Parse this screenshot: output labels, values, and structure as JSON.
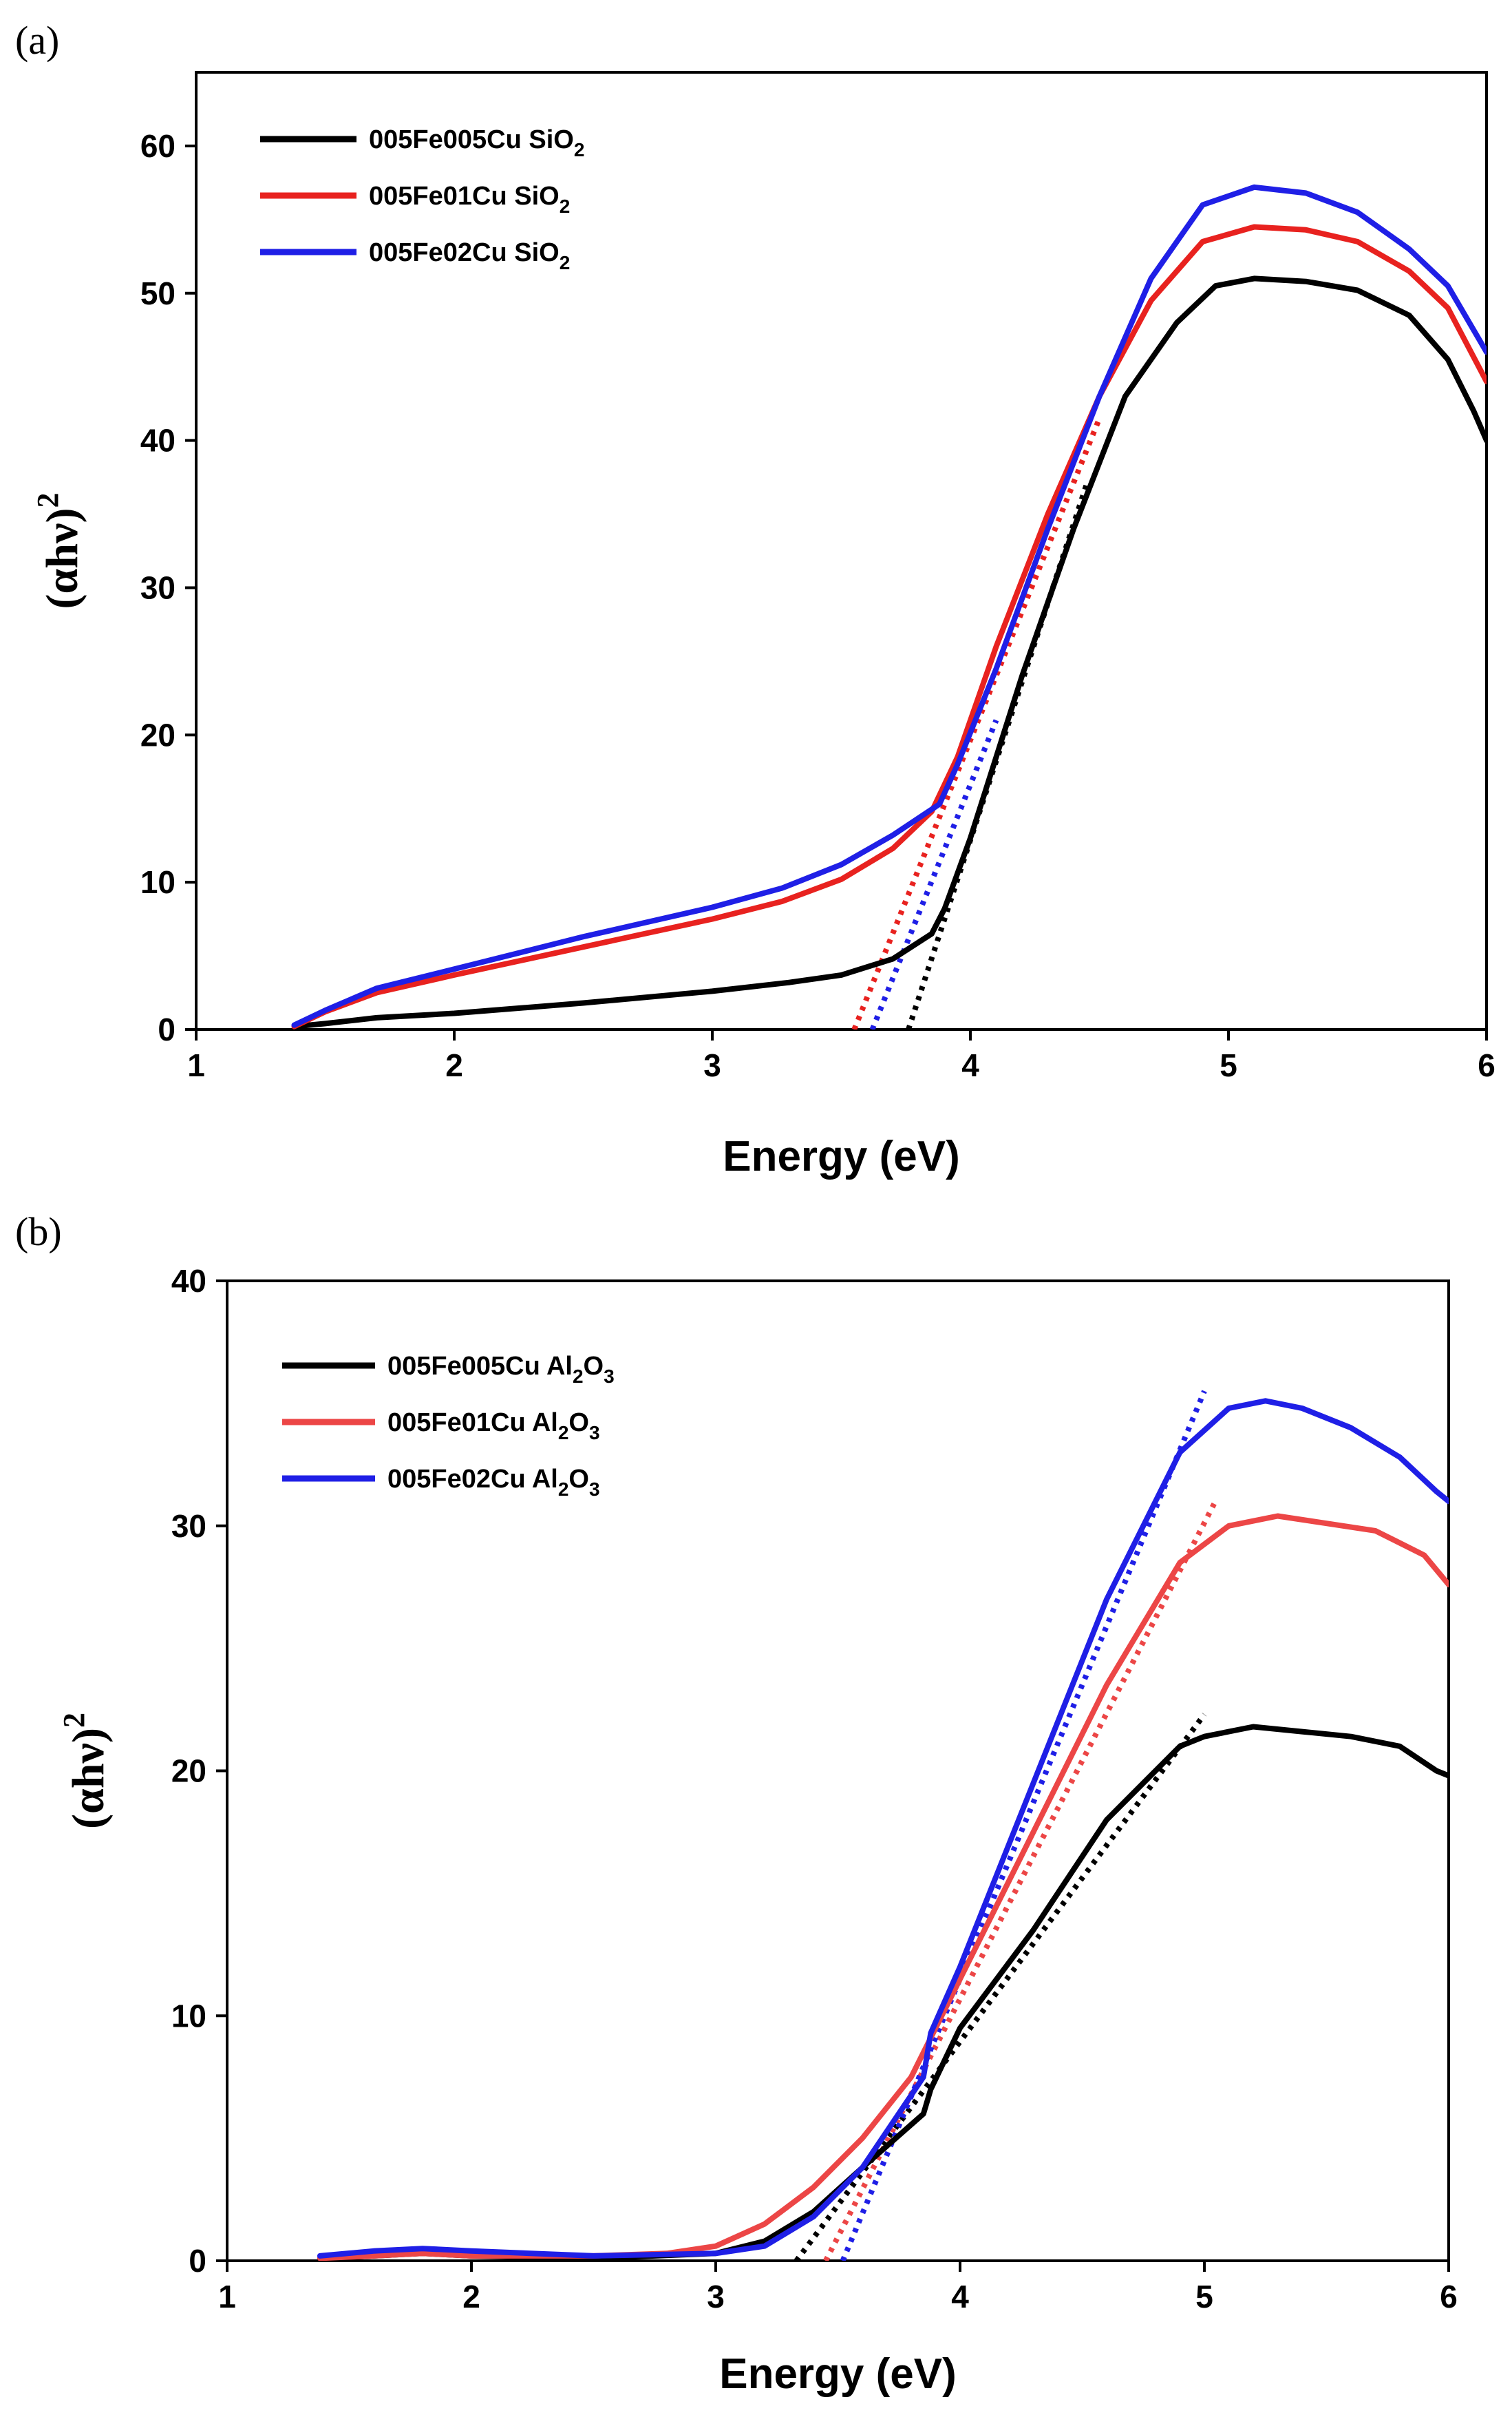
{
  "chart_data": [
    {
      "panel_label": "(a)",
      "type": "line",
      "xlabel": "Energy (eV)",
      "ylabel": {
        "base": "(αhν)",
        "sup": "2"
      },
      "xlim": [
        1,
        6
      ],
      "ylim": [
        0,
        65
      ],
      "xticks": [
        "1",
        "2",
        "3",
        "4",
        "5",
        "6"
      ],
      "yticks": [
        "0",
        "10",
        "20",
        "30",
        "40",
        "50",
        "60"
      ],
      "legend_position": "top-left",
      "series": [
        {
          "name": {
            "base": "005Fe005Cu SiO",
            "sub": "2"
          },
          "color": "#000000",
          "x": [
            1.38,
            1.5,
            1.7,
            2.0,
            2.5,
            3.0,
            3.3,
            3.5,
            3.7,
            3.85,
            3.9,
            4.0,
            4.2,
            4.4,
            4.6,
            4.8,
            4.95,
            5.1,
            5.3,
            5.5,
            5.7,
            5.85,
            5.95,
            6.0
          ],
          "y": [
            0.2,
            0.4,
            0.8,
            1.1,
            1.8,
            2.6,
            3.2,
            3.7,
            4.8,
            6.5,
            8.2,
            13.0,
            24.0,
            34.0,
            43.0,
            48.0,
            50.5,
            51.0,
            50.8,
            50.2,
            48.5,
            45.5,
            42.0,
            40.0
          ]
        },
        {
          "name": {
            "base": "005Fe01Cu SiO",
            "sub": "2"
          },
          "color": "#e8221f",
          "x": [
            1.38,
            1.5,
            1.7,
            2.0,
            2.5,
            3.0,
            3.27,
            3.5,
            3.7,
            3.85,
            3.95,
            4.1,
            4.3,
            4.5,
            4.7,
            4.9,
            5.1,
            5.3,
            5.5,
            5.7,
            5.85,
            6.0
          ],
          "y": [
            0.2,
            1.2,
            2.5,
            3.7,
            5.6,
            7.5,
            8.7,
            10.2,
            12.3,
            14.8,
            18.5,
            26.0,
            35.0,
            43.0,
            49.5,
            53.5,
            54.5,
            54.3,
            53.5,
            51.5,
            49.0,
            44.0
          ]
        },
        {
          "name": {
            "base": "005Fe02Cu SiO",
            "sub": "2"
          },
          "color": "#1f1fe6",
          "x": [
            1.38,
            1.5,
            1.7,
            2.0,
            2.5,
            3.0,
            3.27,
            3.5,
            3.7,
            3.88,
            3.95,
            4.1,
            4.3,
            4.5,
            4.7,
            4.9,
            5.1,
            5.3,
            5.5,
            5.7,
            5.85,
            6.0
          ],
          "y": [
            0.3,
            1.3,
            2.8,
            4.1,
            6.3,
            8.3,
            9.6,
            11.2,
            13.2,
            15.3,
            18.0,
            24.5,
            34.0,
            43.0,
            51.0,
            56.0,
            57.2,
            56.8,
            55.5,
            53.0,
            50.5,
            46.0
          ]
        }
      ],
      "fit_lines": [
        {
          "color": "#000000",
          "x": [
            3.76,
            4.45
          ],
          "y": [
            0,
            37.0
          ]
        },
        {
          "color": "#e8221f",
          "x": [
            3.55,
            4.5
          ],
          "y": [
            0,
            41.5
          ]
        },
        {
          "color": "#1f1fe6",
          "x": [
            3.62,
            4.1
          ],
          "y": [
            0,
            21.0
          ]
        }
      ]
    },
    {
      "panel_label": "(b)",
      "type": "line",
      "xlabel": "Energy (eV)",
      "ylabel": {
        "base": "(αhν)",
        "sup": "2"
      },
      "xlim": [
        1,
        6
      ],
      "ylim": [
        0,
        40
      ],
      "xticks": [
        "1",
        "2",
        "3",
        "4",
        "5",
        "6"
      ],
      "yticks": [
        "0",
        "10",
        "20",
        "30",
        "40"
      ],
      "legend_position": "top-left",
      "series": [
        {
          "name": {
            "base": "005Fe005Cu Al",
            "sub": "2",
            "base2": "O",
            "sub2": "3"
          },
          "color": "#000000",
          "x": [
            1.38,
            1.6,
            1.8,
            2.0,
            2.5,
            3.0,
            3.2,
            3.4,
            3.6,
            3.85,
            3.88,
            4.0,
            4.3,
            4.6,
            4.9,
            5.0,
            5.2,
            5.4,
            5.6,
            5.8,
            5.95,
            6.0
          ],
          "y": [
            0.1,
            0.2,
            0.3,
            0.2,
            0.1,
            0.3,
            0.8,
            2.0,
            3.8,
            6.0,
            7.0,
            9.5,
            13.5,
            18.0,
            21.0,
            21.4,
            21.8,
            21.6,
            21.4,
            21.0,
            20.0,
            19.8
          ]
        },
        {
          "name": {
            "base": "005Fe01Cu Al",
            "sub": "2",
            "base2": "O",
            "sub2": "3"
          },
          "color": "#ec4646",
          "x": [
            1.38,
            1.6,
            1.8,
            2.0,
            2.5,
            2.8,
            3.0,
            3.2,
            3.4,
            3.6,
            3.8,
            4.0,
            4.3,
            4.6,
            4.9,
            5.1,
            5.3,
            5.5,
            5.7,
            5.9,
            6.0
          ],
          "y": [
            0.1,
            0.2,
            0.3,
            0.2,
            0.2,
            0.3,
            0.6,
            1.5,
            3.0,
            5.0,
            7.5,
            11.5,
            17.5,
            23.5,
            28.5,
            30.0,
            30.4,
            30.1,
            29.8,
            28.8,
            27.6
          ]
        },
        {
          "name": {
            "base": "005Fe02Cu Al",
            "sub": "2",
            "base2": "O",
            "sub2": "3"
          },
          "color": "#1f1fe6",
          "x": [
            1.38,
            1.6,
            1.8,
            2.0,
            2.5,
            3.0,
            3.2,
            3.4,
            3.6,
            3.85,
            3.88,
            4.0,
            4.3,
            4.6,
            4.9,
            5.1,
            5.25,
            5.4,
            5.6,
            5.8,
            5.95,
            6.0
          ],
          "y": [
            0.2,
            0.4,
            0.5,
            0.4,
            0.2,
            0.3,
            0.6,
            1.8,
            3.8,
            7.5,
            9.3,
            12.0,
            19.5,
            27.0,
            33.0,
            34.8,
            35.1,
            34.8,
            34.0,
            32.8,
            31.4,
            31.0
          ]
        }
      ],
      "fit_lines": [
        {
          "color": "#000000",
          "x": [
            3.33,
            5.0
          ],
          "y": [
            0,
            22.3
          ]
        },
        {
          "color": "#ec4646",
          "x": [
            3.45,
            5.04
          ],
          "y": [
            0,
            30.9
          ]
        },
        {
          "color": "#1f1fe6",
          "x": [
            3.52,
            5.0
          ],
          "y": [
            0,
            35.5
          ]
        }
      ]
    }
  ]
}
